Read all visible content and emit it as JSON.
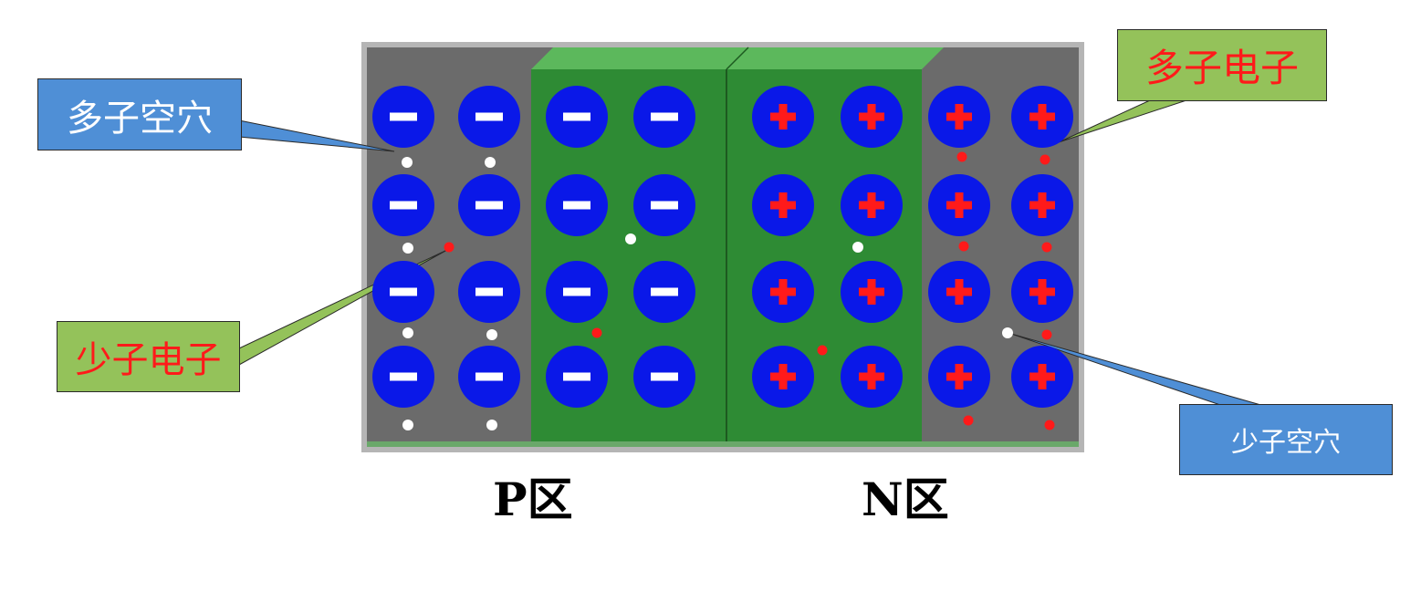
{
  "diagram": {
    "colors": {
      "gray_region": "#6b6b6b",
      "depletion_green": "#2e8b34",
      "depletion_top": "#5cb85c",
      "ion": "#0a18e8",
      "ion_mark_acceptor": "#ffffff",
      "ion_mark_donor": "#ff1a1a",
      "hole": "#ffffff",
      "electron": "#ff1a1a"
    },
    "ions": {
      "p_region": {
        "symbol": "minus",
        "rows": 4,
        "columns": 4
      },
      "n_region": {
        "symbol": "plus",
        "rows": 4,
        "columns": 4
      }
    },
    "callouts": {
      "majority_holes": "多子空穴",
      "minority_electrons": "少子电子",
      "majority_electrons": "多子电子",
      "minority_holes": "少子空穴"
    },
    "region_labels": {
      "p": "P区",
      "n": "N区"
    }
  }
}
